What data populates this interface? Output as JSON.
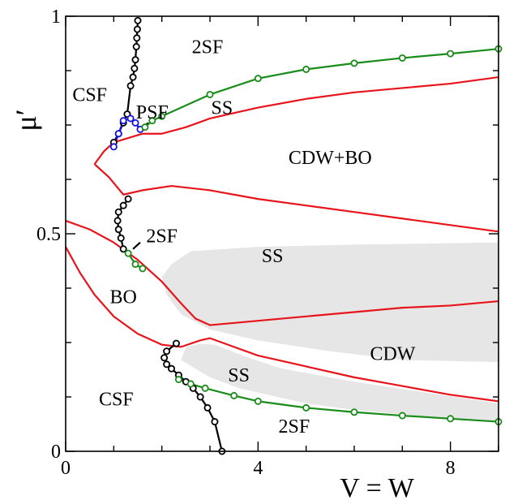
{
  "chart_data": {
    "type": "line",
    "title": "",
    "xlabel": "V = W",
    "ylabel": "μ′",
    "xlim": [
      0,
      9
    ],
    "ylim": [
      0,
      1
    ],
    "x_ticks": [
      {
        "value": 0,
        "label": "0"
      },
      {
        "value": 4,
        "label": "4"
      },
      {
        "value": 8,
        "label": "8"
      }
    ],
    "y_ticks": [
      {
        "value": 0,
        "label": "0"
      },
      {
        "value": 0.5,
        "label": "0.5"
      },
      {
        "value": 1,
        "label": "1"
      }
    ],
    "grid": false,
    "legend": "none",
    "colors": {
      "red": "#e8141c",
      "green": "#1a8c1a",
      "black": "#000000",
      "blue": "#1414e6",
      "shade": "#e6e6e6"
    },
    "shaded_regions": [
      {
        "points": [
          [
            2.0,
            0.4
          ],
          [
            2.1,
            0.36
          ],
          [
            2.4,
            0.315
          ],
          [
            3.0,
            0.28
          ],
          [
            4.0,
            0.255
          ],
          [
            5.5,
            0.23
          ],
          [
            7.0,
            0.21
          ],
          [
            9.0,
            0.205
          ],
          [
            9.0,
            0.48
          ],
          [
            6.0,
            0.475
          ],
          [
            4.0,
            0.47
          ],
          [
            2.6,
            0.46
          ],
          [
            2.2,
            0.43
          ]
        ]
      },
      {
        "points": [
          [
            2.4,
            0.21
          ],
          [
            3.0,
            0.17
          ],
          [
            3.6,
            0.145
          ],
          [
            4.2,
            0.13
          ],
          [
            5.0,
            0.11
          ],
          [
            6.0,
            0.095
          ],
          [
            7.0,
            0.085
          ],
          [
            8.0,
            0.075
          ],
          [
            9.0,
            0.068
          ],
          [
            9.0,
            0.11
          ],
          [
            7.5,
            0.135
          ],
          [
            6.0,
            0.16
          ],
          [
            4.5,
            0.19
          ],
          [
            3.8,
            0.215
          ],
          [
            3.1,
            0.245
          ],
          [
            2.8,
            0.247
          ],
          [
            2.5,
            0.24
          ]
        ]
      }
    ],
    "series": [
      {
        "color": "red",
        "markers": false,
        "points": [
          [
            0.6,
            0.66
          ],
          [
            0.9,
            0.63
          ],
          [
            1.2,
            0.59
          ],
          [
            1.6,
            0.6
          ],
          [
            2.2,
            0.61
          ],
          [
            3.0,
            0.6
          ],
          [
            4.0,
            0.58
          ],
          [
            5.0,
            0.565
          ],
          [
            6.0,
            0.55
          ],
          [
            7.0,
            0.535
          ],
          [
            8.0,
            0.52
          ],
          [
            9.0,
            0.505
          ]
        ]
      },
      {
        "color": "red",
        "markers": false,
        "points": [
          [
            0.6,
            0.66
          ],
          [
            0.8,
            0.69
          ],
          [
            1.0,
            0.71
          ],
          [
            1.3,
            0.72
          ],
          [
            1.6,
            0.73
          ],
          [
            2.0,
            0.73
          ],
          [
            2.5,
            0.745
          ],
          [
            3.0,
            0.765
          ],
          [
            4.0,
            0.79
          ],
          [
            5.0,
            0.81
          ],
          [
            6.0,
            0.825
          ],
          [
            7.0,
            0.835
          ],
          [
            8.0,
            0.845
          ],
          [
            9.0,
            0.86
          ]
        ]
      },
      {
        "color": "red",
        "markers": false,
        "points": [
          [
            0,
            0.53
          ],
          [
            0.5,
            0.51
          ],
          [
            1.0,
            0.48
          ],
          [
            1.5,
            0.44
          ],
          [
            2.0,
            0.39
          ],
          [
            2.4,
            0.34
          ],
          [
            2.7,
            0.305
          ],
          [
            3.0,
            0.29
          ],
          [
            4.0,
            0.3
          ],
          [
            5.0,
            0.31
          ],
          [
            6.0,
            0.32
          ],
          [
            7.0,
            0.33
          ],
          [
            8.0,
            0.335
          ],
          [
            9.0,
            0.345
          ]
        ]
      },
      {
        "color": "red",
        "markers": false,
        "points": [
          [
            0,
            0.47
          ],
          [
            0.3,
            0.41
          ],
          [
            0.6,
            0.36
          ],
          [
            1.0,
            0.31
          ],
          [
            1.5,
            0.27
          ],
          [
            2.0,
            0.245
          ],
          [
            2.4,
            0.24
          ],
          [
            2.8,
            0.255
          ],
          [
            3.0,
            0.26
          ],
          [
            3.5,
            0.24
          ],
          [
            4.0,
            0.22
          ],
          [
            5.0,
            0.195
          ],
          [
            6.0,
            0.17
          ],
          [
            7.0,
            0.15
          ],
          [
            8.0,
            0.13
          ],
          [
            9.0,
            0.115
          ]
        ]
      },
      {
        "color": "black",
        "markers": true,
        "points": [
          [
            1.0,
            0.71
          ],
          [
            1.1,
            0.73
          ],
          [
            1.2,
            0.755
          ],
          [
            1.28,
            0.775
          ],
          [
            1.35,
            0.84
          ],
          [
            1.4,
            0.86
          ],
          [
            1.43,
            0.88
          ],
          [
            1.45,
            0.9
          ],
          [
            1.47,
            0.93
          ],
          [
            1.48,
            0.95
          ],
          [
            1.49,
            0.97
          ],
          [
            1.5,
            0.99
          ]
        ]
      },
      {
        "color": "blue",
        "markers": true,
        "points": [
          [
            1.0,
            0.7
          ],
          [
            1.1,
            0.73
          ],
          [
            1.2,
            0.76
          ],
          [
            1.35,
            0.765
          ],
          [
            1.45,
            0.755
          ],
          [
            1.55,
            0.74
          ]
        ]
      },
      {
        "color": "black",
        "markers": false,
        "points": [
          [
            1.55,
            0.74
          ],
          [
            1.72,
            0.755
          ]
        ]
      },
      {
        "color": "green",
        "markers": true,
        "points": [
          [
            1.65,
            0.745
          ],
          [
            1.8,
            0.76
          ],
          [
            2.0,
            0.77
          ],
          [
            3.0,
            0.82
          ],
          [
            4.0,
            0.857
          ],
          [
            5.0,
            0.878
          ],
          [
            6.0,
            0.892
          ],
          [
            7.0,
            0.904
          ],
          [
            8.0,
            0.914
          ],
          [
            9.0,
            0.925
          ]
        ]
      },
      {
        "color": "black",
        "markers": true,
        "points": [
          [
            1.2,
            0.465
          ],
          [
            1.15,
            0.49
          ],
          [
            1.1,
            0.51
          ],
          [
            1.08,
            0.53
          ],
          [
            1.1,
            0.55
          ],
          [
            1.2,
            0.565
          ],
          [
            1.3,
            0.58
          ]
        ]
      },
      {
        "color": "black",
        "markers": false,
        "points": [
          [
            1.4,
            0.465
          ],
          [
            1.55,
            0.48
          ]
        ]
      },
      {
        "color": "green",
        "markers": true,
        "points": [
          [
            1.3,
            0.455
          ],
          [
            1.45,
            0.43
          ],
          [
            1.6,
            0.42
          ]
        ]
      },
      {
        "color": "black",
        "markers": true,
        "points": [
          [
            3.25,
            0.0
          ],
          [
            3.1,
            0.068
          ],
          [
            2.95,
            0.1
          ],
          [
            2.8,
            0.125
          ],
          [
            2.65,
            0.145
          ],
          [
            2.5,
            0.16
          ],
          [
            2.35,
            0.175
          ],
          [
            2.2,
            0.19
          ],
          [
            2.1,
            0.2
          ],
          [
            2.05,
            0.215
          ],
          [
            2.1,
            0.23
          ],
          [
            2.3,
            0.248
          ]
        ]
      },
      {
        "color": "green",
        "markers": true,
        "points": [
          [
            2.35,
            0.165
          ],
          [
            2.6,
            0.155
          ],
          [
            2.9,
            0.145
          ],
          [
            3.5,
            0.128
          ],
          [
            4.0,
            0.115
          ],
          [
            5.0,
            0.1
          ],
          [
            6.0,
            0.09
          ],
          [
            7.0,
            0.082
          ],
          [
            8.0,
            0.075
          ],
          [
            9.0,
            0.068
          ]
        ]
      }
    ],
    "annotations": [
      {
        "text": "2SF",
        "x": 2.95,
        "y": 0.93
      },
      {
        "text": "CSF",
        "x": 0.5,
        "y": 0.82
      },
      {
        "text": "PSF",
        "x": 1.8,
        "y": 0.78
      },
      {
        "text": "SS",
        "x": 3.25,
        "y": 0.79
      },
      {
        "text": "CDW+BO",
        "x": 5.5,
        "y": 0.675
      },
      {
        "text": "2SF",
        "x": 2.0,
        "y": 0.495
      },
      {
        "text": "SS",
        "x": 4.3,
        "y": 0.45
      },
      {
        "text": "BO",
        "x": 1.2,
        "y": 0.355
      },
      {
        "text": "CDW",
        "x": 6.8,
        "y": 0.225
      },
      {
        "text": "SS",
        "x": 3.6,
        "y": 0.175
      },
      {
        "text": "CSF",
        "x": 1.05,
        "y": 0.12
      },
      {
        "text": "2SF",
        "x": 4.75,
        "y": 0.058
      }
    ]
  }
}
